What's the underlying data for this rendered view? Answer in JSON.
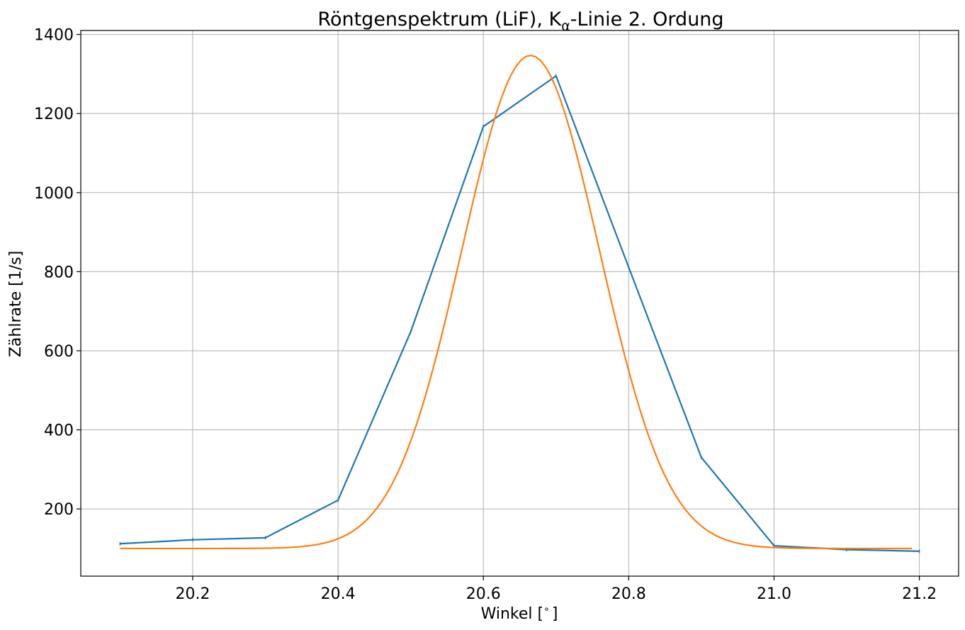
{
  "chart_data": {
    "type": "line",
    "title": "Röntgenspektrum (LiF), K",
    "title_sub": "α",
    "title_suffix": "-Linie 2. Ordung",
    "xlabel": "Winkel [",
    "xlabel_symbol": "∘",
    "xlabel_suffix": "]",
    "ylabel": "Zählrate [1/s]",
    "xlim": [
      20.046,
      21.254
    ],
    "ylim": [
      30,
      1410
    ],
    "x_ticks": [
      20.2,
      20.4,
      20.6,
      20.8,
      21.0,
      21.2
    ],
    "x_tick_labels": [
      "20.2",
      "20.4",
      "20.6",
      "20.8",
      "21.0",
      "21.2"
    ],
    "y_ticks": [
      200,
      400,
      600,
      800,
      1000,
      1200,
      1400
    ],
    "y_tick_labels": [
      "200",
      "400",
      "600",
      "800",
      "1000",
      "1200",
      "1400"
    ],
    "grid": true,
    "series": [
      {
        "color": "#1f77b4",
        "kind": "measured",
        "x": [
          20.1,
          20.2,
          20.3,
          20.4,
          20.5,
          20.6,
          20.7,
          20.8,
          20.9,
          21.0,
          21.1,
          21.2
        ],
        "y": [
          112,
          122,
          127,
          222,
          648,
          1167,
          1295,
          811,
          330,
          107,
          97,
          93
        ]
      },
      {
        "color": "#ff7f0e",
        "kind": "fit",
        "function": "gaussian",
        "params": {
          "amplitude": 1247,
          "center": 20.665,
          "sigma": 0.0945,
          "offset": 100
        },
        "x_range": [
          20.1,
          21.19
        ]
      }
    ]
  }
}
